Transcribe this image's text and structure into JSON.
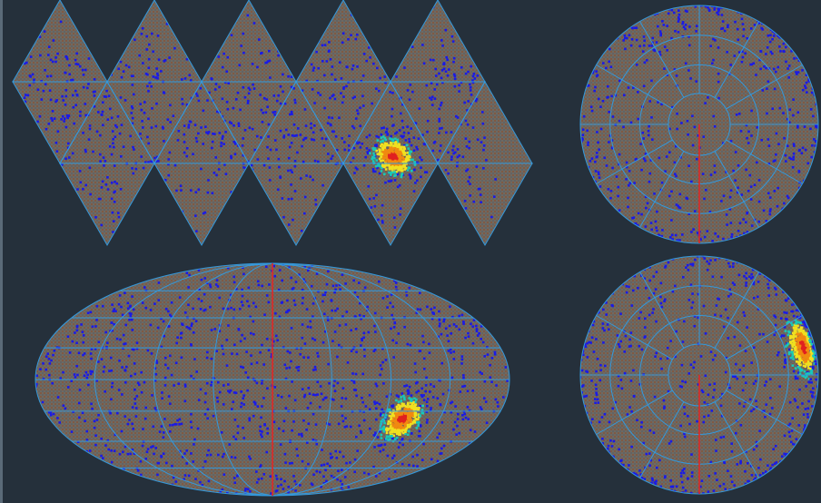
{
  "app": {
    "title": ""
  },
  "palette": {
    "background": "#25303b",
    "grid": "#3399dd",
    "tile_fill": "#6e6a62",
    "tile_texture": "#8c4a2c",
    "meridian": "#e02828",
    "density_low": "#1a1ae6",
    "density_mid": "#18c8b8",
    "density_high": "#f0e020",
    "density_peak": "#e02020"
  },
  "views": [
    {
      "id": "icosahedron-net",
      "projection": "icosahedral-net",
      "triangles_per_row": 5,
      "rows": 4
    },
    {
      "id": "north-polar-view",
      "projection": "orthographic-north",
      "rings": 4,
      "meridian_visible": true
    },
    {
      "id": "mollweide-view",
      "projection": "mollweide",
      "parallels": 7,
      "meridians": 9,
      "meridian_visible": true
    },
    {
      "id": "south-polar-view",
      "projection": "orthographic-south",
      "rings": 4,
      "meridian_visible": true
    }
  ],
  "hotspot": {
    "lon_deg": 105,
    "lat_deg": -25,
    "spread": "moderate"
  },
  "background_points": 1100
}
